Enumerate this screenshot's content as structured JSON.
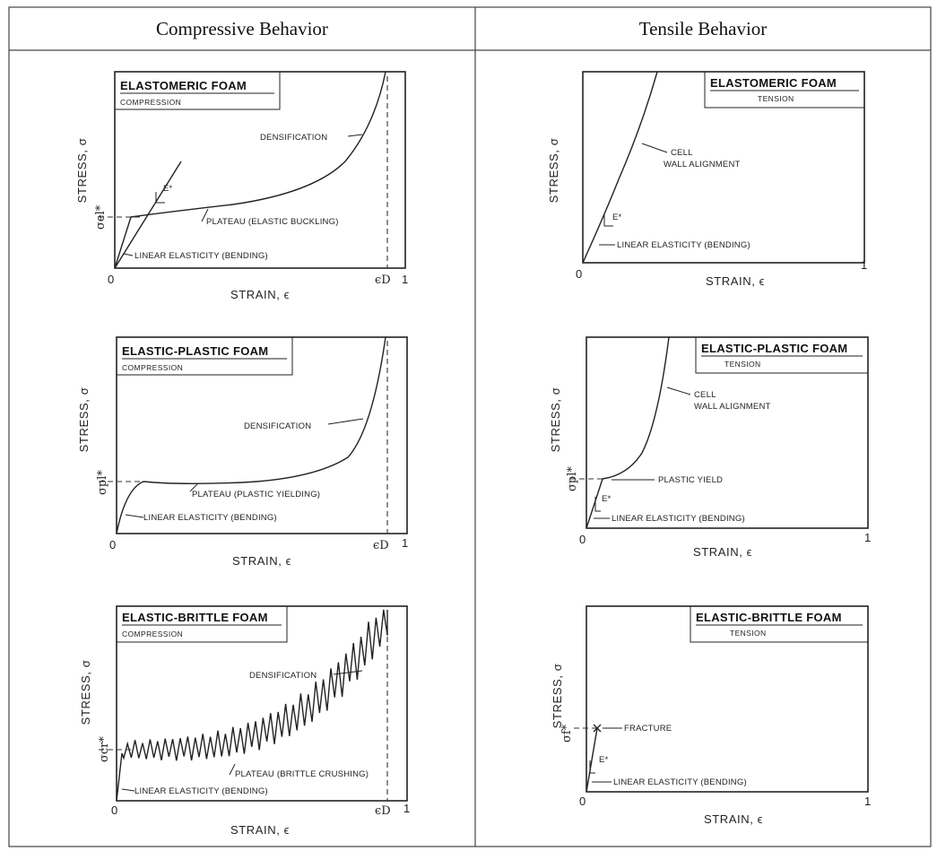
{
  "table": {
    "headers": {
      "left": "Compressive Behavior",
      "right": "Tensile Behavior"
    }
  },
  "axes": {
    "stress": "STRESS, σ",
    "strain": "STRAIN, ϵ",
    "zero": "0",
    "one": "1",
    "eps_d": "ϵD"
  },
  "panels": {
    "elastomeric_compression": {
      "title": "ELASTOMERIC FOAM",
      "subtitle": "COMPRESSION",
      "densification": "DENSIFICATION",
      "plateau": "PLATEAU (ELASTIC BUCKLING)",
      "linear": "LINEAR ELASTICITY (BENDING)",
      "modulus": "E*",
      "sigma": "σel*"
    },
    "elastomeric_tension": {
      "title": "ELASTOMERIC FOAM",
      "subtitle": "TENSION",
      "alignment_1": "CELL",
      "alignment_2": "WALL ALIGNMENT",
      "linear": "LINEAR ELASTICITY (BENDING)",
      "modulus": "E*"
    },
    "plastic_compression": {
      "title": "ELASTIC-PLASTIC FOAM",
      "subtitle": "COMPRESSION",
      "densification": "DENSIFICATION",
      "plateau": "PLATEAU (PLASTIC YIELDING)",
      "linear": "LINEAR ELASTICITY (BENDING)",
      "sigma": "σpl*"
    },
    "plastic_tension": {
      "title": "ELASTIC-PLASTIC FOAM",
      "subtitle": "TENSION",
      "alignment_1": "CELL",
      "alignment_2": "WALL ALIGNMENT",
      "yield": "PLASTIC YIELD",
      "linear": "LINEAR ELASTICITY (BENDING)",
      "modulus": "E*",
      "sigma": "σpl*"
    },
    "brittle_compression": {
      "title": "ELASTIC-BRITTLE FOAM",
      "subtitle": "COMPRESSION",
      "densification": "DENSIFICATION",
      "plateau": "PLATEAU (BRITTLE CRUSHING)",
      "linear": "LINEAR ELASTICITY (BENDING)",
      "sigma": "σcr*"
    },
    "brittle_tension": {
      "title": "ELASTIC-BRITTLE FOAM",
      "subtitle": "TENSION",
      "fracture": "FRACTURE",
      "linear": "LINEAR ELASTICITY (BENDING)",
      "modulus": "E*",
      "sigma": "σf*"
    }
  }
}
